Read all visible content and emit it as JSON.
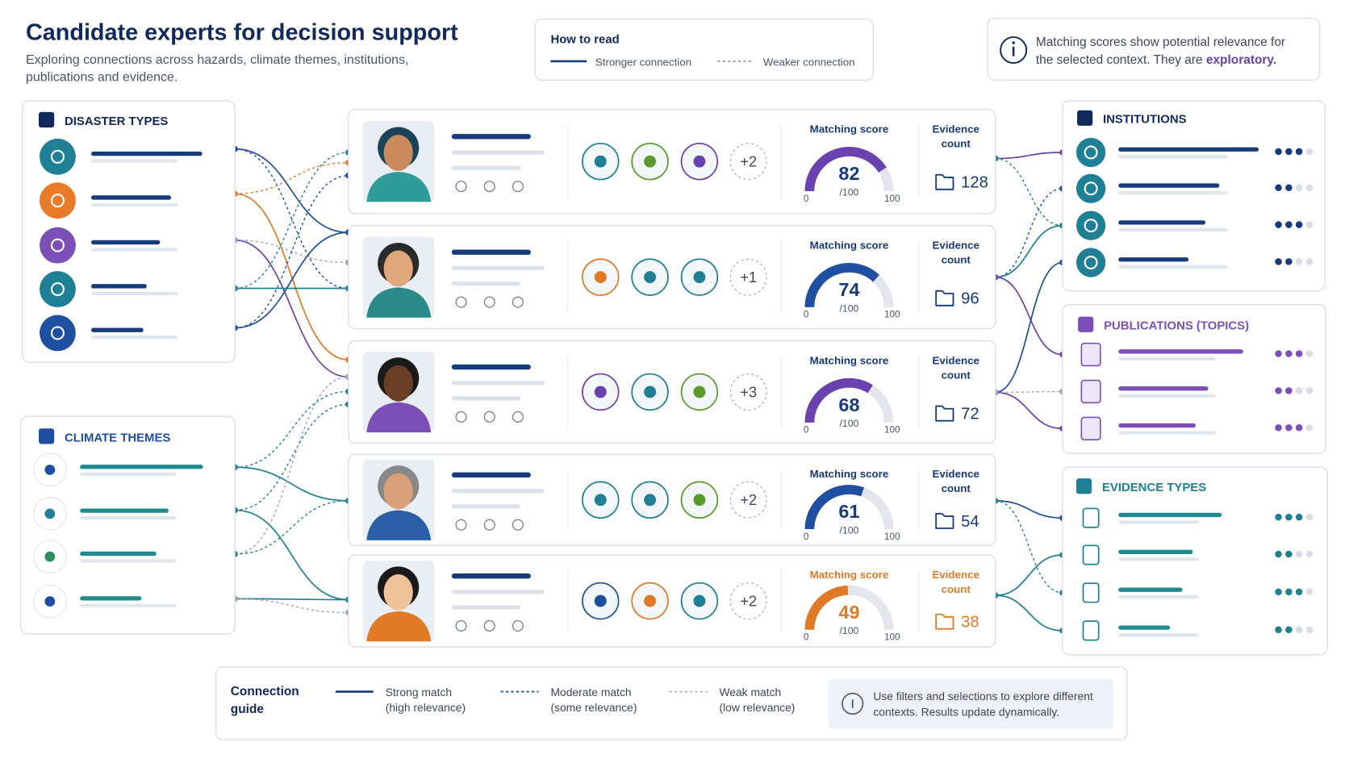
{
  "header": {
    "title": "Candidate experts for decision support",
    "subtitle": [
      "Exploring connections across hazards, climate themes, institutions,",
      "publications and evidence."
    ]
  },
  "how_to_read": {
    "title": "How to read",
    "stronger": "Stronger connection",
    "weaker": "Weaker connection"
  },
  "info_note": {
    "lines": [
      "Matching scores show potential relevance for",
      "the selected context. They are"
    ],
    "emphasis": "exploratory."
  },
  "panels": {
    "disaster_types": "DISASTER TYPES",
    "climate_themes": "CLIMATE THEMES",
    "institutions": "INSTITUTIONS",
    "publications": "PUBLICATIONS (TOPICS)",
    "evidence_types": "EVIDENCE TYPES"
  },
  "experts": {
    "score_label": "Matching score",
    "count_label": [
      "Evidence",
      "count"
    ],
    "score_min": 0,
    "score_max": 100,
    "score_suffix": "/100",
    "cards": [
      {
        "score": 82,
        "evidence_count": 128,
        "more_topics": "+2",
        "color": "#6a42b0",
        "text_color": "#173a7a"
      },
      {
        "score": 74,
        "evidence_count": 96,
        "more_topics": "+1",
        "color": "#1e4fa0",
        "text_color": "#173a7a"
      },
      {
        "score": 68,
        "evidence_count": 72,
        "more_topics": "+3",
        "color": "#6a42b0",
        "text_color": "#173a7a"
      },
      {
        "score": 61,
        "evidence_count": 54,
        "more_topics": "+2",
        "color": "#1e4fa0",
        "text_color": "#173a7a"
      },
      {
        "score": 49,
        "evidence_count": 38,
        "more_topics": "+2",
        "color": "#e07a26",
        "text_color": "#e07a26"
      }
    ]
  },
  "connection_guide": {
    "title": [
      "Connection",
      "guide"
    ],
    "items": [
      [
        "Strong match",
        "(high relevance)"
      ],
      [
        "Moderate match",
        "(some relevance)"
      ],
      [
        "Weak match",
        "(low relevance)"
      ]
    ],
    "note": [
      "Use filters and selections to explore different",
      "contexts. Results update dynamically."
    ]
  }
}
